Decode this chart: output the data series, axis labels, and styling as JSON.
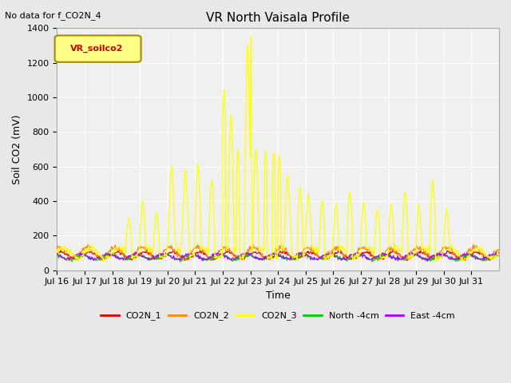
{
  "title": "VR North Vaisala Profile",
  "subtitle": "No data for f_CO2N_4",
  "ylabel": "Soil CO2 (mV)",
  "xlabel": "Time",
  "ylim": [
    0,
    1400
  ],
  "legend_label": "VR_soilco2",
  "series_labels": [
    "CO2N_1",
    "CO2N_2",
    "CO2N_3",
    "North -4cm",
    "East -4cm"
  ],
  "series_colors": [
    "#dd0000",
    "#ff8800",
    "#ffff00",
    "#00cc00",
    "#aa00ff"
  ],
  "xtick_labels": [
    "Jul 16",
    "Jul 17",
    "Jul 18",
    "Jul 19",
    "Jul 20",
    "Jul 21",
    "Jul 22",
    "Jul 23",
    "Jul 24",
    "Jul 25",
    "Jul 26",
    "Jul 27",
    "Jul 28",
    "Jul 29",
    "Jul 30",
    "Jul 31"
  ],
  "background_color": "#e8e8e8",
  "plot_bg_color": "#f0f0f0",
  "grid_color": "#ffffff"
}
